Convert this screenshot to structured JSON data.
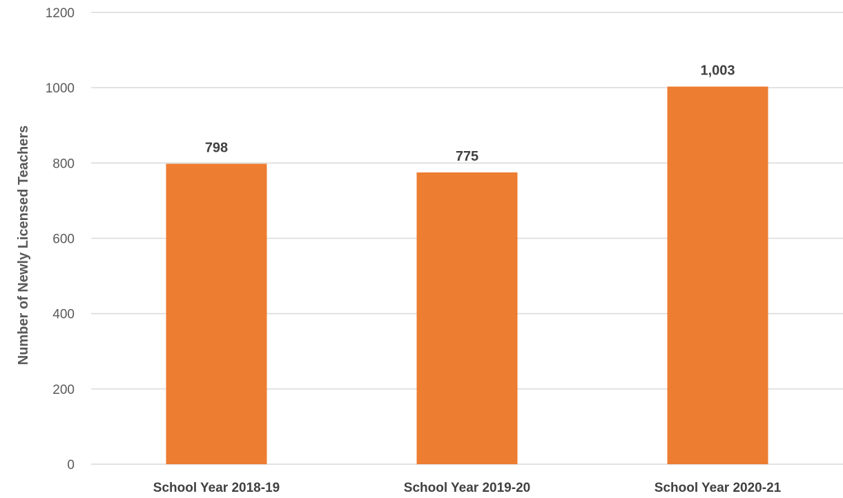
{
  "chart_data": {
    "type": "bar",
    "title": "",
    "xlabel": "",
    "ylabel": "Number of Newly Licensed Teachers",
    "ylim": [
      0,
      1200
    ],
    "yticks": [
      0,
      200,
      400,
      600,
      800,
      1000,
      1200
    ],
    "grid": true,
    "legend": "none",
    "categories": [
      "School Year 2018-19",
      "School Year 2019-20",
      "School Year 2020-21"
    ],
    "values": [
      798,
      775,
      1003
    ],
    "data_labels": [
      "798",
      "775",
      "1,003"
    ],
    "bar_color": "#ED7D31",
    "grid_color": "#D9D9D9"
  }
}
